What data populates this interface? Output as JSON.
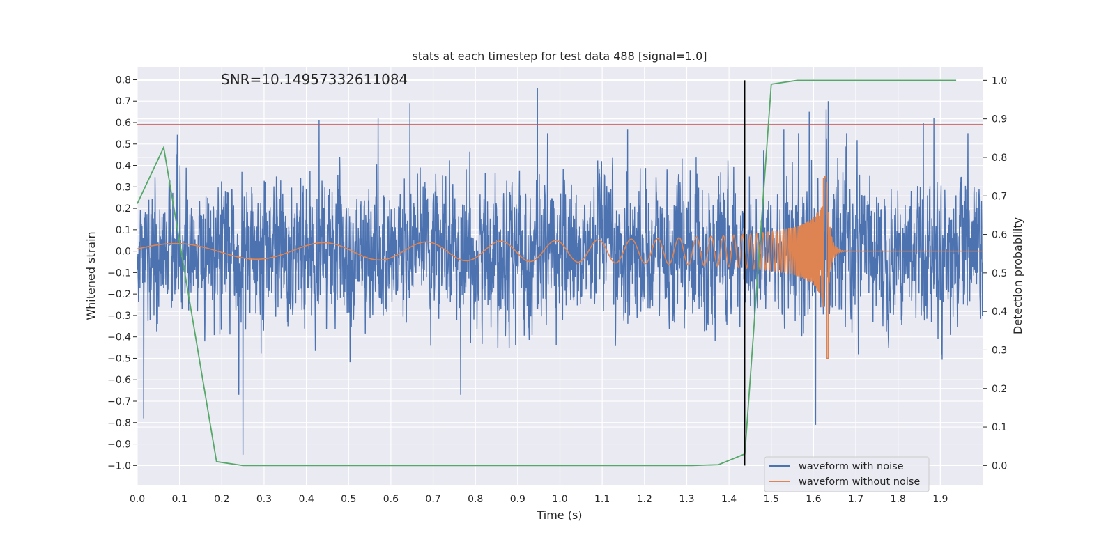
{
  "chart_data": {
    "type": "line",
    "title": "stats at each timestep for test data 488 [signal=1.0]",
    "annotation": "SNR=10.14957332611084",
    "xlabel": "Time (s)",
    "ylabel_left": "Whitened strain",
    "ylabel_right": "Detection probability",
    "xlim": [
      0.0,
      2.0
    ],
    "ylim_left": [
      -1.09,
      0.86
    ],
    "ylim_right": [
      -0.05,
      1.035
    ],
    "x_ticks": [
      "0.0",
      "0.1",
      "0.2",
      "0.3",
      "0.4",
      "0.5",
      "0.6",
      "0.7",
      "0.8",
      "0.9",
      "1.0",
      "1.1",
      "1.2",
      "1.3",
      "1.4",
      "1.5",
      "1.6",
      "1.7",
      "1.8",
      "1.9"
    ],
    "y_ticks_left": [
      "0.8",
      "0.7",
      "0.6",
      "0.5",
      "0.4",
      "0.3",
      "0.2",
      "0.1",
      "0.0",
      "−0.1",
      "−0.2",
      "−0.3",
      "−0.4",
      "−0.5",
      "−0.6",
      "−0.7",
      "−0.8",
      "−0.9",
      "−1.0"
    ],
    "y_ticks_right": [
      "1.0",
      "0.9",
      "0.8",
      "0.7",
      "0.6",
      "0.5",
      "0.4",
      "0.3",
      "0.2",
      "0.1",
      "0.0"
    ],
    "grid": true,
    "legend_position": "lower-right",
    "colors": {
      "noisy": "#4c72b0",
      "clean": "#dd8452",
      "probability": "#55a868",
      "threshold": "#c44e52",
      "detection_line": "#000000",
      "axes_bg": "#eaeaf2",
      "grid": "#ffffff"
    },
    "series": [
      {
        "name": "waveform with noise",
        "axis": "left",
        "noise_sigma": 0.22,
        "peaks": [
          [
            0.015,
            -0.78
          ],
          [
            0.25,
            -0.95
          ],
          [
            0.947,
            0.76
          ],
          [
            0.645,
            0.69
          ],
          [
            0.24,
            -0.67
          ],
          [
            1.605,
            -0.81
          ],
          [
            1.635,
            0.7
          ],
          [
            1.885,
            0.62
          ],
          [
            0.43,
            0.61
          ],
          [
            0.57,
            0.62
          ],
          [
            1.63,
            0.66
          ],
          [
            1.59,
            0.65
          ],
          [
            1.86,
            0.6
          ],
          [
            0.765,
            -0.67
          ],
          [
            1.16,
            0.57
          ],
          [
            1.53,
            0.57
          ]
        ]
      },
      {
        "name": "waveform without noise",
        "axis": "left",
        "base_amplitude": 0.035,
        "merger_time": 1.63,
        "peak_positive": 0.34,
        "peak_negative": -0.5
      },
      {
        "name": "Detection probability",
        "axis": "right",
        "x": [
          0.0,
          0.0625,
          0.1875,
          0.25,
          0.3125,
          1.3125,
          1.375,
          1.4375,
          1.5,
          1.5625,
          1.625,
          1.9375
        ],
        "y": [
          0.68,
          0.826,
          0.01,
          0.0,
          0.0,
          0.0,
          0.002,
          0.03,
          0.99,
          1.0,
          1.0,
          1.0
        ]
      }
    ],
    "threshold_y": 0.59,
    "detection_time": 1.437
  }
}
